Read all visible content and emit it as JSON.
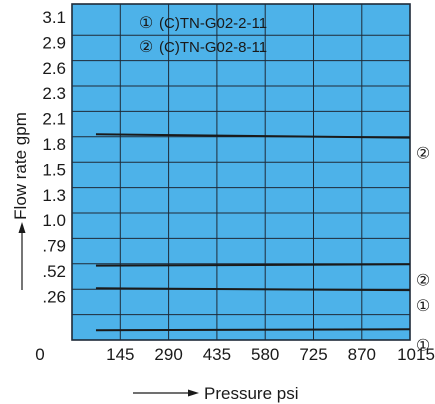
{
  "chart_data": {
    "type": "line",
    "xlabel": "Pressure psi",
    "ylabel": "Flow rate gpm",
    "x_ticks": [
      "0",
      "145",
      "290",
      "435",
      "580",
      "725",
      "870",
      "1015"
    ],
    "y_ticks": [
      "3.1",
      "2.9",
      "2.6",
      "2.3",
      "2.1",
      "1.8",
      "1.5",
      "1.3",
      "1.0",
      ".79",
      ".52",
      ".26"
    ],
    "xlim": [
      0,
      1015
    ],
    "grid": true,
    "background_color": "#4db2e9",
    "grid_color": "#1e2a38",
    "legend": [
      {
        "marker": "①",
        "label": "(C)TN-G02-2-11"
      },
      {
        "marker": "②",
        "label": "(C)TN-G02-8-11"
      }
    ],
    "series": [
      {
        "marker": "②",
        "x": [
          72,
          1015
        ],
        "y": [
          2.12,
          2.09
        ]
      },
      {
        "marker": "②",
        "x": [
          72,
          1015
        ],
        "y": [
          0.77,
          0.785
        ]
      },
      {
        "marker": "①",
        "x": [
          72,
          1015
        ],
        "y": [
          0.53,
          0.51
        ]
      },
      {
        "marker": "①",
        "x": [
          72,
          1015
        ],
        "y": [
          0.1,
          0.11
        ]
      }
    ]
  }
}
